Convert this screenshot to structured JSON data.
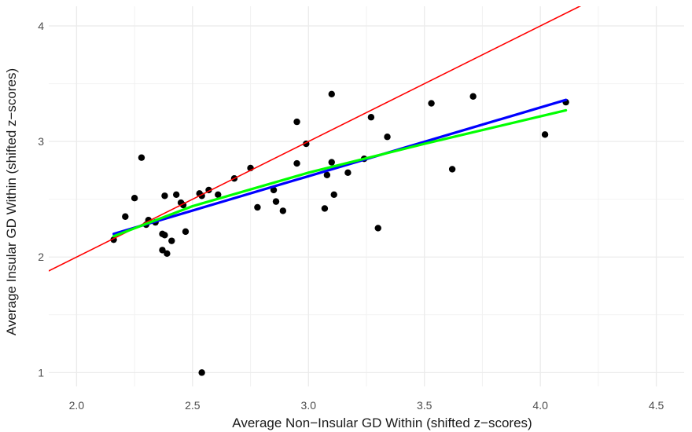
{
  "chart_data": {
    "type": "scatter",
    "title": "",
    "xlabel": "Average Non−Insular GD Within (shifted z−scores)",
    "ylabel": "Average Insular GD Within (shifted z−scores)",
    "xlim": [
      1.88,
      4.62
    ],
    "ylim": [
      0.88,
      4.17
    ],
    "x_ticks": [
      2.0,
      2.5,
      3.0,
      3.5,
      4.0,
      4.5
    ],
    "x_tick_labels": [
      "2.0",
      "2.5",
      "3.0",
      "3.5",
      "4.0",
      "4.5"
    ],
    "y_ticks": [
      1,
      2,
      3,
      4
    ],
    "y_tick_labels": [
      "1",
      "2",
      "3",
      "4"
    ],
    "grid": true,
    "points": [
      [
        2.16,
        2.15
      ],
      [
        2.21,
        2.35
      ],
      [
        2.25,
        2.51
      ],
      [
        2.28,
        2.86
      ],
      [
        2.3,
        2.28
      ],
      [
        2.31,
        2.32
      ],
      [
        2.34,
        2.3
      ],
      [
        2.37,
        2.06
      ],
      [
        2.37,
        2.2
      ],
      [
        2.38,
        2.19
      ],
      [
        2.38,
        2.53
      ],
      [
        2.39,
        2.03
      ],
      [
        2.41,
        2.14
      ],
      [
        2.43,
        2.54
      ],
      [
        2.45,
        2.47
      ],
      [
        2.46,
        2.45
      ],
      [
        2.47,
        2.22
      ],
      [
        2.53,
        2.55
      ],
      [
        2.54,
        2.53
      ],
      [
        2.54,
        1.0
      ],
      [
        2.57,
        2.58
      ],
      [
        2.61,
        2.54
      ],
      [
        2.68,
        2.68
      ],
      [
        2.75,
        2.77
      ],
      [
        2.78,
        2.43
      ],
      [
        2.85,
        2.58
      ],
      [
        2.86,
        2.48
      ],
      [
        2.89,
        2.4
      ],
      [
        2.95,
        3.17
      ],
      [
        2.95,
        2.81
      ],
      [
        2.99,
        2.98
      ],
      [
        3.07,
        2.42
      ],
      [
        3.08,
        2.71
      ],
      [
        3.1,
        2.82
      ],
      [
        3.1,
        3.41
      ],
      [
        3.11,
        2.54
      ],
      [
        3.17,
        2.73
      ],
      [
        3.24,
        2.85
      ],
      [
        3.27,
        3.21
      ],
      [
        3.3,
        2.25
      ],
      [
        3.34,
        3.04
      ],
      [
        3.53,
        3.33
      ],
      [
        3.62,
        2.76
      ],
      [
        3.71,
        3.39
      ],
      [
        4.02,
        3.06
      ],
      [
        4.11,
        3.34
      ]
    ],
    "point_color": "#000000",
    "lines": [
      {
        "color": "#ff0000",
        "x": [
          1.88,
          4.62
        ],
        "y": [
          1.88,
          4.62
        ]
      },
      {
        "color": "#0000ff",
        "x": [
          2.16,
          4.11
        ],
        "y": [
          2.2,
          3.36
        ]
      },
      {
        "color": "#00ff00",
        "x": [
          2.16,
          2.5,
          3.0,
          3.5,
          4.11
        ],
        "y": [
          2.18,
          2.44,
          2.73,
          2.98,
          3.27
        ]
      }
    ]
  }
}
